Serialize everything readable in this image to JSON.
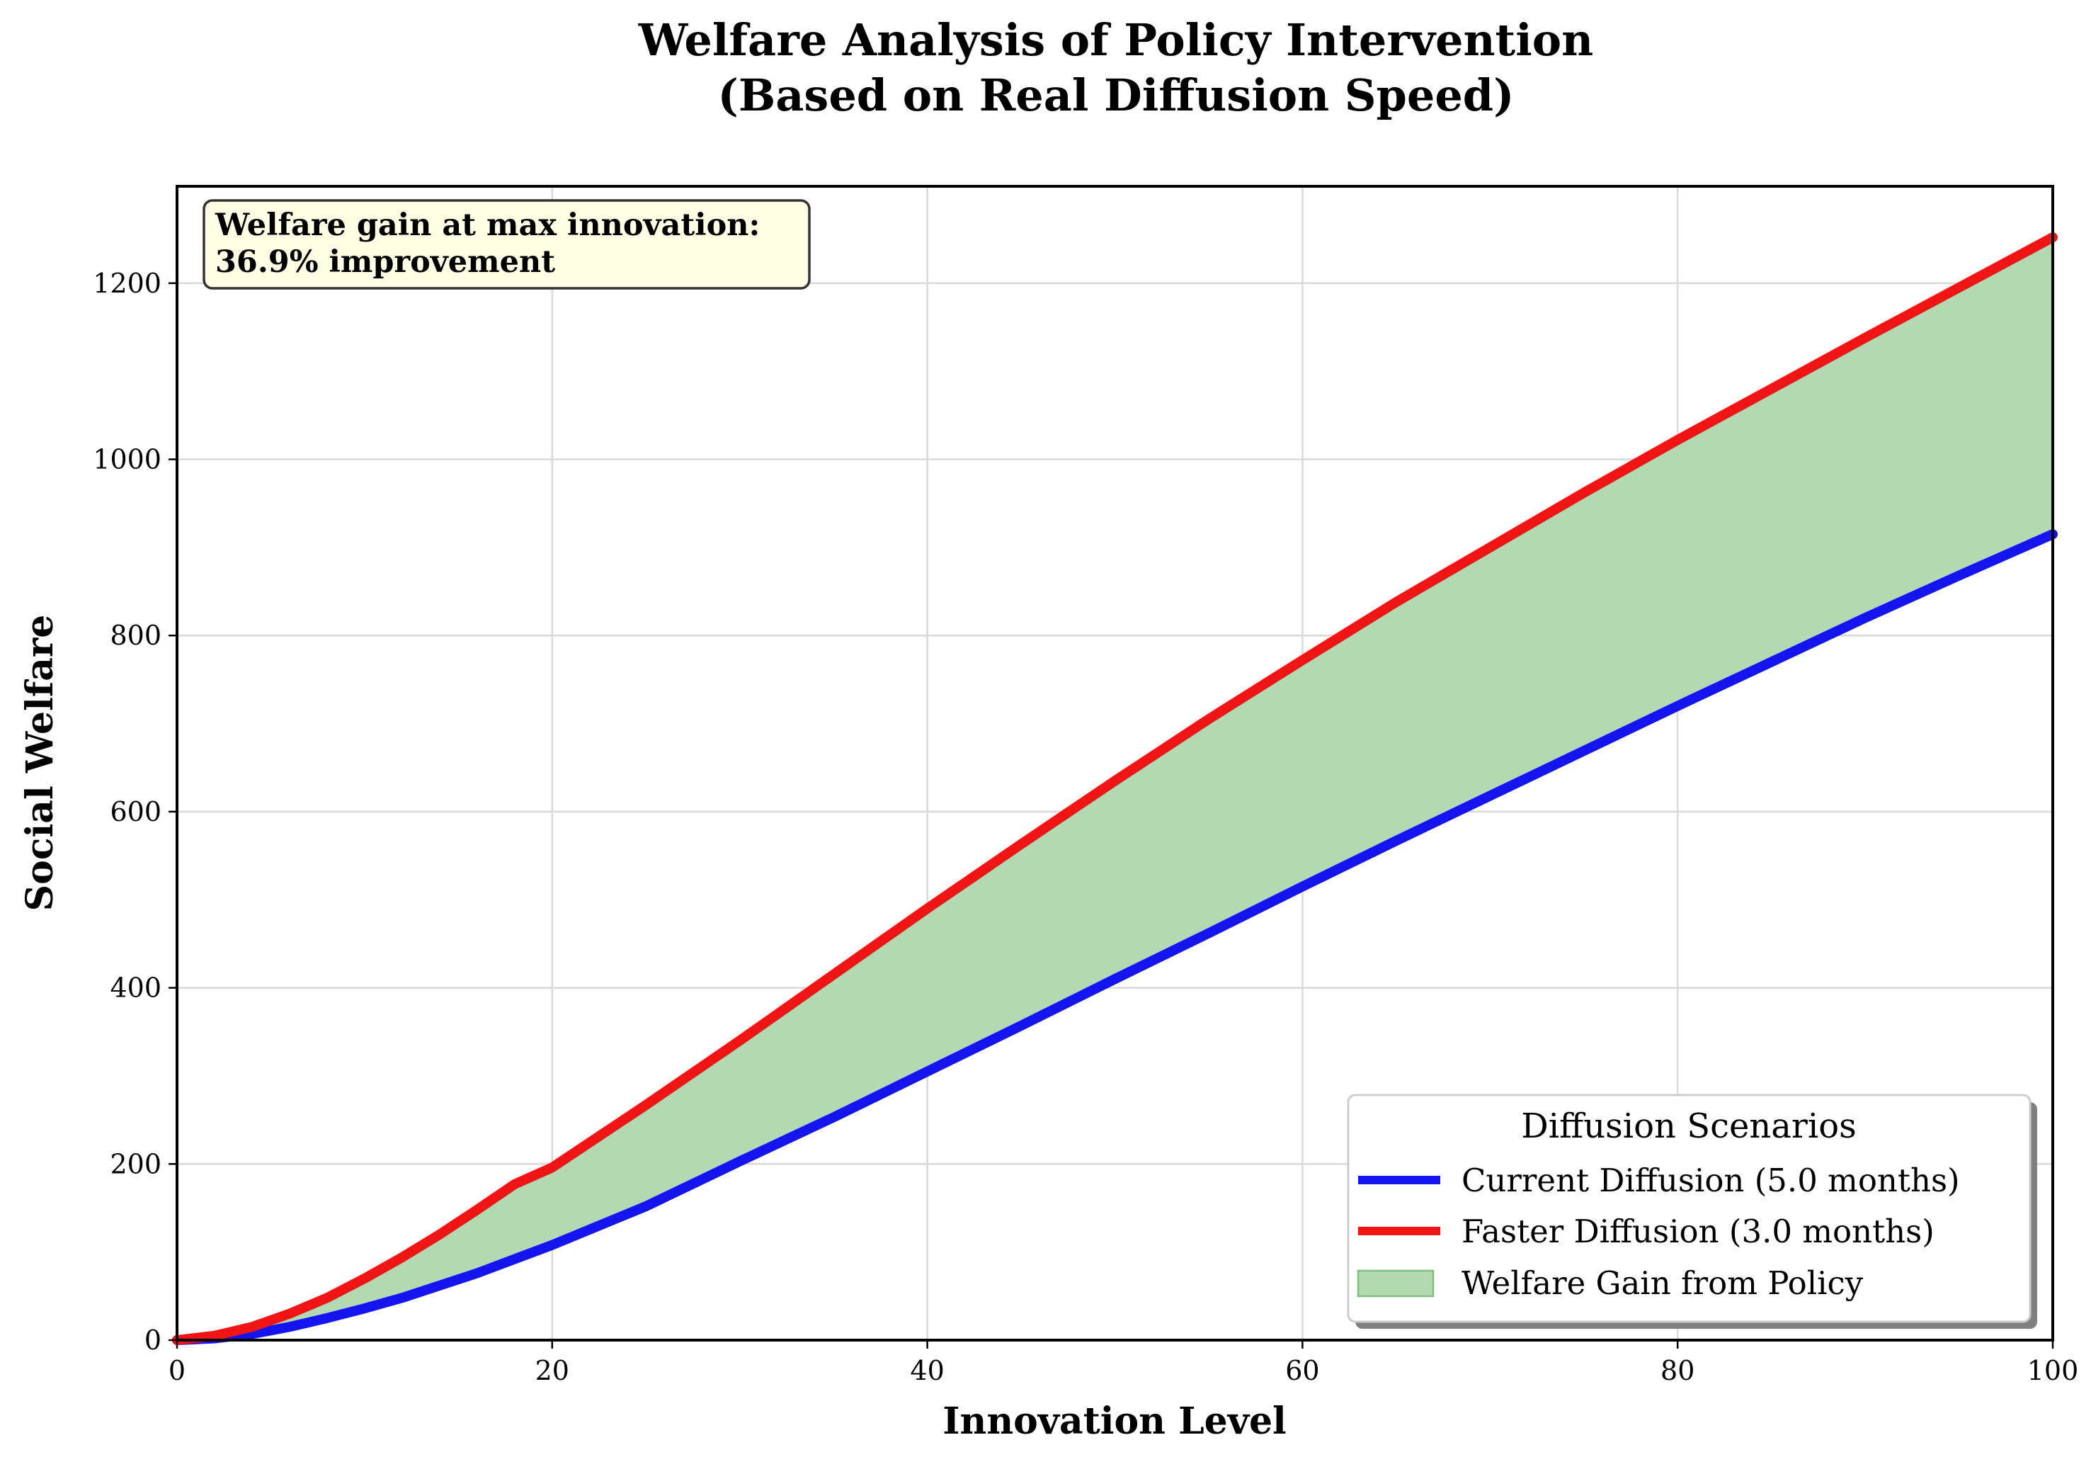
{
  "chart_data": {
    "type": "line",
    "title": "Welfare Analysis of Policy Intervention",
    "subtitle": "(Based on Real Diffusion Speed)",
    "xlabel": "Innovation Level",
    "ylabel": "Social Welfare",
    "xlim": [
      0,
      100
    ],
    "ylim": [
      0,
      1310
    ],
    "xticks": [
      0,
      20,
      40,
      60,
      80,
      100
    ],
    "yticks": [
      0,
      200,
      400,
      600,
      800,
      1000,
      1200
    ],
    "grid": true,
    "series": [
      {
        "name": "Current Diffusion (5.0 months)",
        "color": "#1414f0",
        "x": [
          0,
          2,
          4,
          6,
          8,
          10,
          12,
          14,
          16,
          18,
          20,
          25,
          30,
          35,
          40,
          45,
          50,
          55,
          60,
          65,
          70,
          75,
          80,
          85,
          90,
          95,
          100
        ],
        "y": [
          0,
          2,
          7,
          15,
          25,
          36,
          48,
          62,
          76,
          92,
          108,
          152,
          203,
          253,
          305,
          357,
          410,
          462,
          515,
          567,
          618,
          669,
          720,
          770,
          820,
          868,
          915
        ]
      },
      {
        "name": "Faster Diffusion (3.0 months)",
        "color": "#f01414",
        "x": [
          0,
          2,
          4,
          6,
          8,
          10,
          12,
          14,
          16,
          18,
          20,
          25,
          30,
          35,
          40,
          45,
          50,
          55,
          60,
          65,
          70,
          75,
          80,
          85,
          90,
          95,
          100
        ],
        "y": [
          0,
          5,
          15,
          30,
          48,
          70,
          94,
          120,
          148,
          177,
          196,
          267,
          340,
          415,
          490,
          563,
          635,
          705,
          772,
          838,
          900,
          962,
          1022,
          1080,
          1138,
          1195,
          1252
        ]
      }
    ],
    "fill": {
      "name": "Welfare Gain from Policy",
      "color": "#b3d9b3",
      "between": [
        "Current Diffusion (5.0 months)",
        "Faster Diffusion (3.0 months)"
      ]
    },
    "legend": {
      "title": "Diffusion Scenarios",
      "placement": "lower-right"
    },
    "annotation": {
      "line1": "Welfare gain at max innovation:",
      "line2": "36.9% improvement",
      "placement": "top-left"
    }
  }
}
